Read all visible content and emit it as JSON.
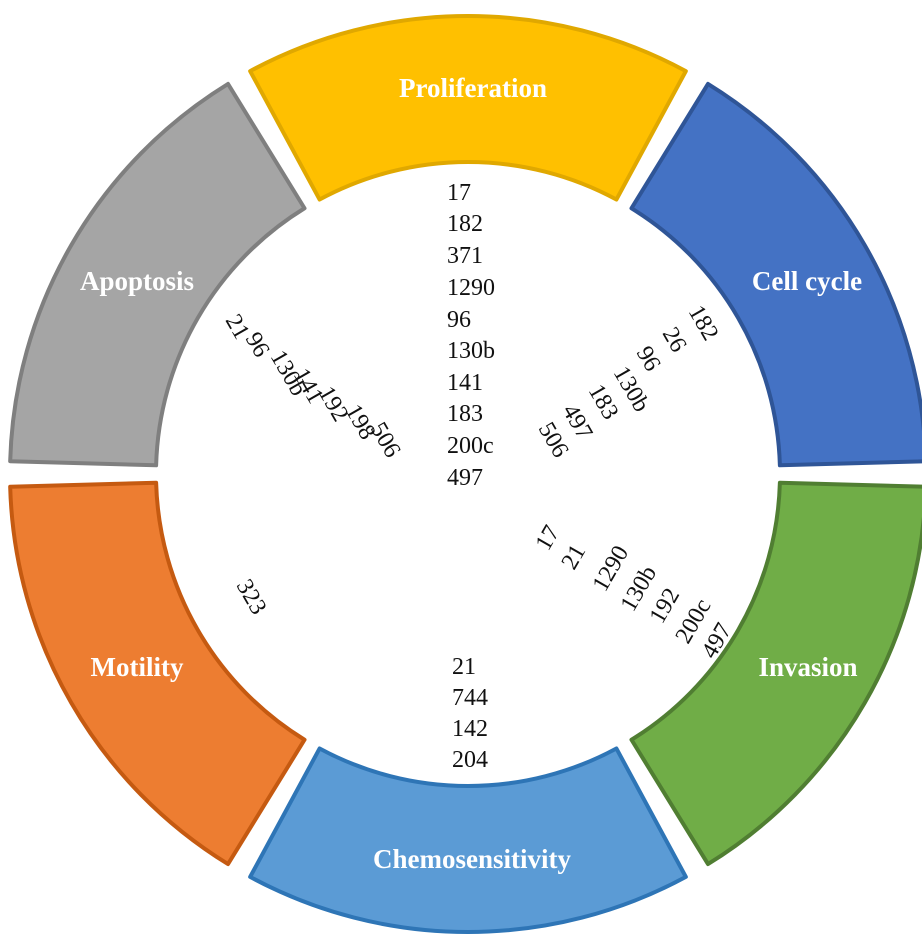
{
  "segments": [
    {
      "id": "proliferation",
      "label": "Proliferation",
      "color": "#FFC000",
      "border": "#E0A800"
    },
    {
      "id": "cell-cycle",
      "label": "Cell cycle",
      "color": "#4472C4",
      "border": "#2F5597"
    },
    {
      "id": "invasion",
      "label": "Invasion",
      "color": "#70AD47",
      "border": "#507E32"
    },
    {
      "id": "chemosensitivity",
      "label": "Chemosensitivity",
      "color": "#5B9BD5",
      "border": "#2E75B6"
    },
    {
      "id": "motility",
      "label": "Motility",
      "color": "#ED7D31",
      "border": "#C55A11"
    },
    {
      "id": "apoptosis",
      "label": "Apoptosis",
      "color": "#A5A5A5",
      "border": "#7F7F7F"
    }
  ],
  "lists": {
    "proliferation": [
      "17",
      "182",
      "371",
      "1290",
      "96",
      "130b",
      "141",
      "183",
      "200c",
      "497"
    ],
    "cell_cycle": [
      "182",
      "26",
      "96",
      "130b",
      "183",
      "497",
      "506"
    ],
    "apoptosis": [
      "21",
      "96",
      "130b",
      "141",
      "192",
      "198",
      "506"
    ],
    "invasion": [
      "17",
      "21",
      "1290",
      "130b",
      "192",
      "200c",
      "497"
    ],
    "motility": [
      "323"
    ],
    "chemosensitivity": [
      "21",
      "744",
      "142",
      "204"
    ]
  }
}
